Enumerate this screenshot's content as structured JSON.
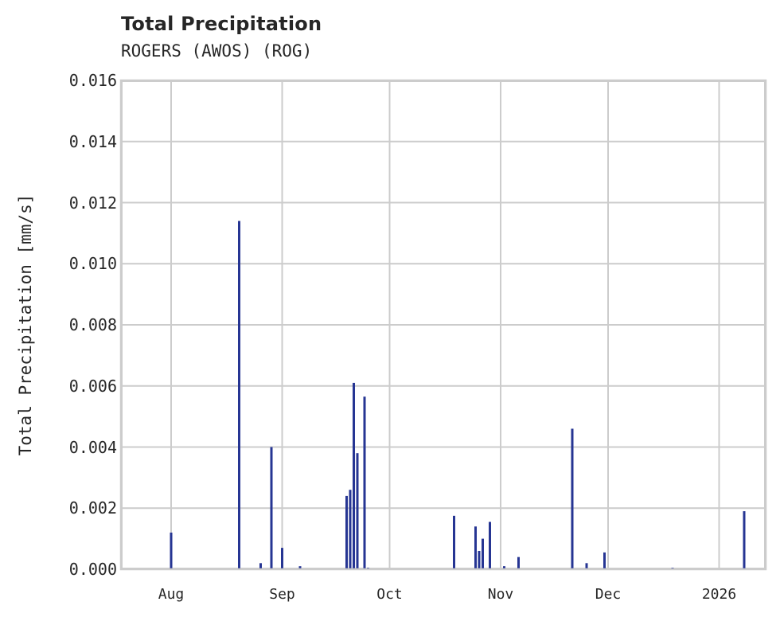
{
  "chart_data": {
    "type": "bar",
    "title": "Total Precipitation",
    "subtitle": "ROGERS (AWOS) (ROG)",
    "xlabel": "",
    "ylabel": "Total Precipitation [mm/s]",
    "ylim": [
      0,
      0.016
    ],
    "yticks": [
      "0.000",
      "0.002",
      "0.004",
      "0.006",
      "0.008",
      "0.010",
      "0.012",
      "0.014",
      "0.016"
    ],
    "xticks": [
      "Aug",
      "Sep",
      "Oct",
      "Nov",
      "Dec",
      "2026"
    ],
    "grid": true,
    "bar_color": "#263593",
    "x_range": [
      "2025-07-18",
      "2026-01-14"
    ],
    "points": [
      {
        "date": "2025-08-01",
        "value": 0.0012
      },
      {
        "date": "2025-08-01",
        "value": 0.00055
      },
      {
        "date": "2025-08-20",
        "value": 0.0114
      },
      {
        "date": "2025-08-26",
        "value": 0.0002
      },
      {
        "date": "2025-08-29",
        "value": 0.004
      },
      {
        "date": "2025-08-29",
        "value": 0.0017
      },
      {
        "date": "2025-09-01",
        "value": 0.0007
      },
      {
        "date": "2025-09-01",
        "value": 0.0004
      },
      {
        "date": "2025-09-06",
        "value": 0.0001
      },
      {
        "date": "2025-09-19",
        "value": 0.0024
      },
      {
        "date": "2025-09-20",
        "value": 0.0026
      },
      {
        "date": "2025-09-21",
        "value": 0.0061
      },
      {
        "date": "2025-09-21",
        "value": 0.0044
      },
      {
        "date": "2025-09-22",
        "value": 0.0038
      },
      {
        "date": "2025-09-24",
        "value": 0.00565
      },
      {
        "date": "2025-09-25",
        "value": 5e-05
      },
      {
        "date": "2025-10-19",
        "value": 0.00175
      },
      {
        "date": "2025-10-25",
        "value": 0.0014
      },
      {
        "date": "2025-10-26",
        "value": 0.0006
      },
      {
        "date": "2025-10-27",
        "value": 0.001
      },
      {
        "date": "2025-10-29",
        "value": 0.00155
      },
      {
        "date": "2025-11-02",
        "value": 0.0001
      },
      {
        "date": "2025-11-06",
        "value": 0.0004
      },
      {
        "date": "2025-11-21",
        "value": 0.0046
      },
      {
        "date": "2025-11-25",
        "value": 0.0002
      },
      {
        "date": "2025-11-30",
        "value": 0.00055
      },
      {
        "date": "2025-12-19",
        "value": 5e-05
      },
      {
        "date": "2026-01-08",
        "value": 0.0019
      }
    ]
  }
}
